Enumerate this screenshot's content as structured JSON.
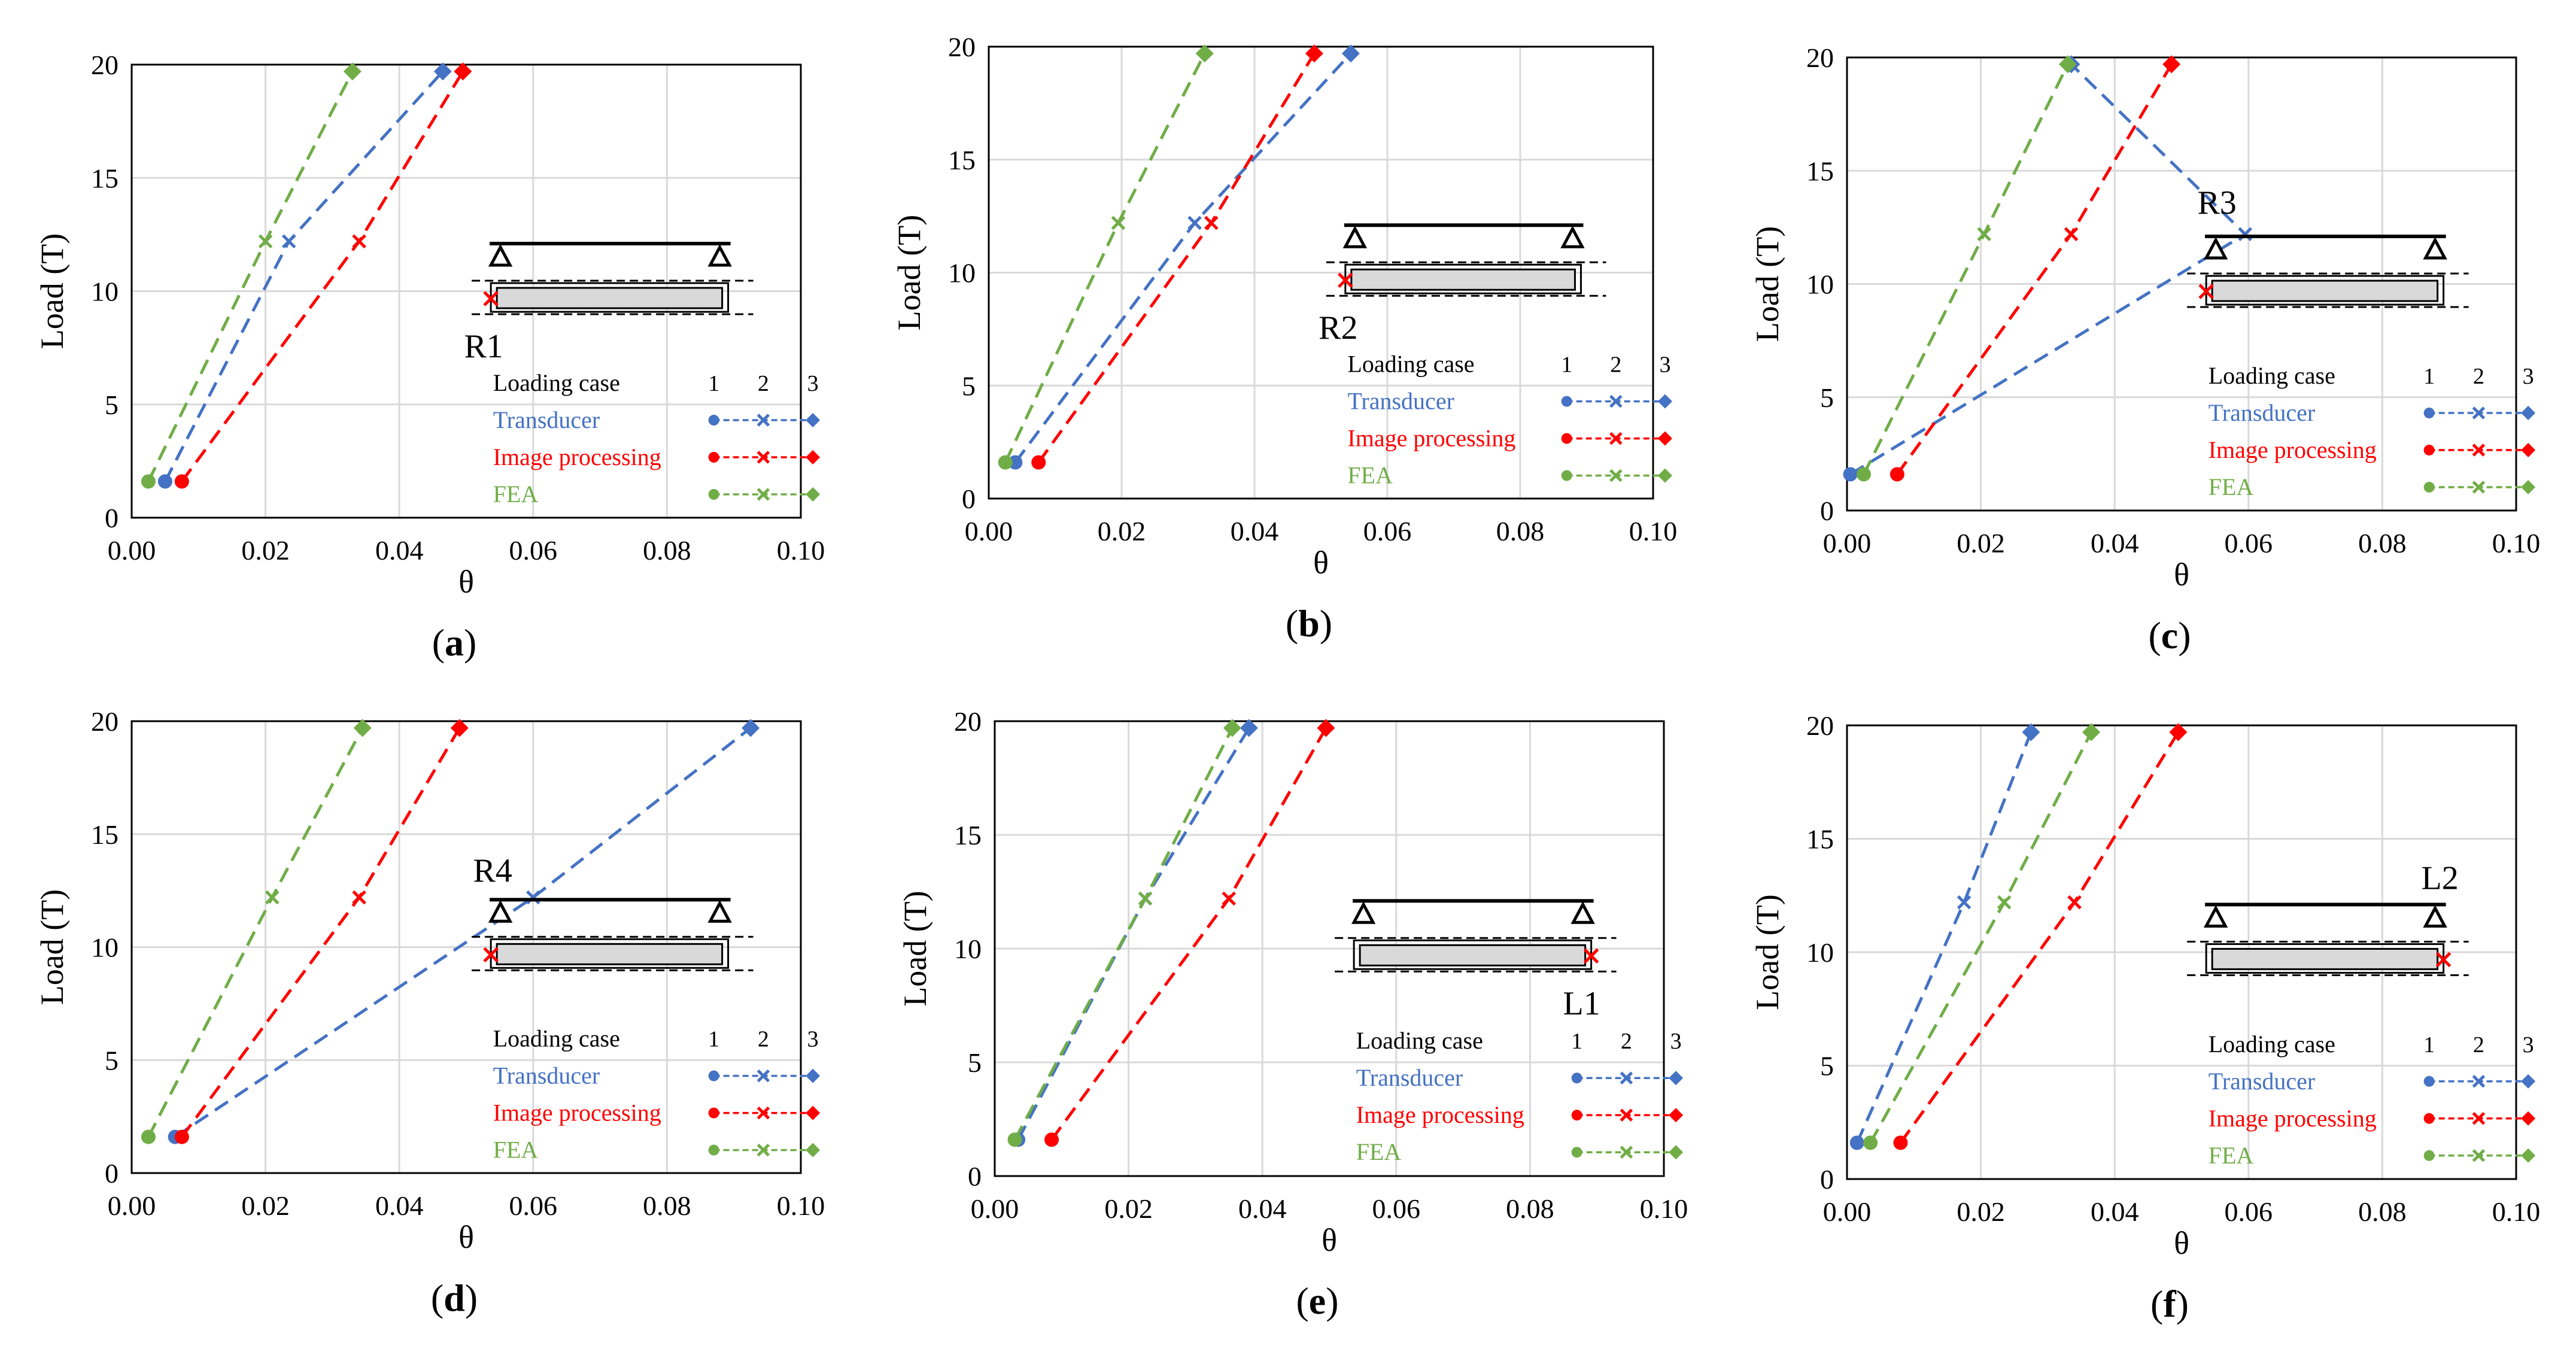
{
  "colors": {
    "transducer": "#4472C4",
    "image_processing": "#FF0000",
    "fea": "#70AD47",
    "grid": "#D9D9D9",
    "beam_fill": "#D9D9D9"
  },
  "chart_data": [
    {
      "type": "line",
      "panel_label": "(a)",
      "label_letter": "a",
      "inset_label": "R1",
      "xlabel": "θ",
      "ylabel": "Load (T)",
      "xlim": [
        0,
        0.1
      ],
      "ylim": [
        0,
        20
      ],
      "xticks": [
        "0.00",
        "0.02",
        "0.04",
        "0.06",
        "0.08",
        "0.10"
      ],
      "yticks": [
        "0",
        "5",
        "10",
        "15",
        "20"
      ],
      "legend": {
        "header": "Loading case",
        "cases": [
          "1",
          "2",
          "3"
        ],
        "entries": [
          "Transducer",
          "Image processing",
          "FEA"
        ]
      },
      "series": [
        {
          "name": "Transducer",
          "x": [
            0.005,
            0.0235,
            0.0465
          ],
          "y": [
            1.6,
            12.2,
            19.7
          ]
        },
        {
          "name": "Image processing",
          "x": [
            0.0075,
            0.034,
            0.0495
          ],
          "y": [
            1.6,
            12.2,
            19.7
          ]
        },
        {
          "name": "FEA",
          "x": [
            0.0025,
            0.02,
            0.033
          ],
          "y": [
            1.6,
            12.2,
            19.7
          ]
        }
      ]
    },
    {
      "type": "line",
      "panel_label": "(b)",
      "label_letter": "b",
      "inset_label": "R2",
      "xlabel": "θ",
      "ylabel": "Load (T)",
      "xlim": [
        0,
        0.1
      ],
      "ylim": [
        0,
        20
      ],
      "xticks": [
        "0.00",
        "0.02",
        "0.04",
        "0.06",
        "0.08",
        "0.10"
      ],
      "yticks": [
        "0",
        "5",
        "10",
        "15",
        "20"
      ],
      "legend": {
        "header": "Loading case",
        "cases": [
          "1",
          "2",
          "3"
        ],
        "entries": [
          "Transducer",
          "Image processing",
          "FEA"
        ]
      },
      "series": [
        {
          "name": "Transducer",
          "x": [
            0.004,
            0.031,
            0.0545
          ],
          "y": [
            1.6,
            12.2,
            19.7
          ]
        },
        {
          "name": "Image processing",
          "x": [
            0.0075,
            0.0335,
            0.049
          ],
          "y": [
            1.6,
            12.2,
            19.7
          ]
        },
        {
          "name": "FEA",
          "x": [
            0.0025,
            0.0195,
            0.0325
          ],
          "y": [
            1.6,
            12.2,
            19.7
          ]
        }
      ]
    },
    {
      "type": "line",
      "panel_label": "(c)",
      "label_letter": "c",
      "inset_label": "R3",
      "xlabel": "θ",
      "ylabel": "Load (T)",
      "xlim": [
        0,
        0.1
      ],
      "ylim": [
        0,
        20
      ],
      "xticks": [
        "0.00",
        "0.02",
        "0.04",
        "0.06",
        "0.08",
        "0.10"
      ],
      "yticks": [
        "0",
        "5",
        "10",
        "15",
        "20"
      ],
      "legend": {
        "header": "Loading case",
        "cases": [
          "1",
          "2",
          "3"
        ],
        "entries": [
          "Transducer",
          "Image processing",
          "FEA"
        ]
      },
      "series": [
        {
          "name": "Transducer",
          "x": [
            0.0005,
            0.0595,
            0.0335
          ],
          "y": [
            1.6,
            12.2,
            19.7
          ]
        },
        {
          "name": "Image processing",
          "x": [
            0.0075,
            0.0335,
            0.0485
          ],
          "y": [
            1.6,
            12.2,
            19.7
          ]
        },
        {
          "name": "FEA",
          "x": [
            0.0025,
            0.0205,
            0.033
          ],
          "y": [
            1.6,
            12.2,
            19.7
          ]
        }
      ]
    },
    {
      "type": "line",
      "panel_label": "(d)",
      "label_letter": "d",
      "inset_label": "R4",
      "xlabel": "θ",
      "ylabel": "Load (T)",
      "xlim": [
        0,
        0.1
      ],
      "ylim": [
        0,
        20
      ],
      "xticks": [
        "0.00",
        "0.02",
        "0.04",
        "0.06",
        "0.08",
        "0.10"
      ],
      "yticks": [
        "0",
        "5",
        "10",
        "15",
        "20"
      ],
      "legend": {
        "header": "Loading case",
        "cases": [
          "1",
          "2",
          "3"
        ],
        "entries": [
          "Transducer",
          "Image processing",
          "FEA"
        ]
      },
      "series": [
        {
          "name": "Transducer",
          "x": [
            0.0065,
            0.06,
            0.0925
          ],
          "y": [
            1.6,
            12.2,
            19.7
          ]
        },
        {
          "name": "Image processing",
          "x": [
            0.0075,
            0.034,
            0.049
          ],
          "y": [
            1.6,
            12.2,
            19.7
          ]
        },
        {
          "name": "FEA",
          "x": [
            0.0025,
            0.021,
            0.0345
          ],
          "y": [
            1.6,
            12.2,
            19.7
          ]
        }
      ]
    },
    {
      "type": "line",
      "panel_label": "(e)",
      "label_letter": "e",
      "inset_label": "L1",
      "xlabel": "θ",
      "ylabel": "Load (T)",
      "xlim": [
        0,
        0.1
      ],
      "ylim": [
        0,
        20
      ],
      "xticks": [
        "0.00",
        "0.02",
        "0.04",
        "0.06",
        "0.08",
        "0.10"
      ],
      "yticks": [
        "0",
        "5",
        "10",
        "15",
        "20"
      ],
      "legend": {
        "header": "Loading case",
        "cases": [
          "1",
          "2",
          "3"
        ],
        "entries": [
          "Transducer",
          "Image processing",
          "FEA"
        ]
      },
      "series": [
        {
          "name": "Transducer",
          "x": [
            0.0035,
            0.0225,
            0.038
          ],
          "y": [
            1.6,
            12.2,
            19.7
          ]
        },
        {
          "name": "Image processing",
          "x": [
            0.0085,
            0.035,
            0.0495
          ],
          "y": [
            1.6,
            12.2,
            19.7
          ]
        },
        {
          "name": "FEA",
          "x": [
            0.003,
            0.0225,
            0.0355
          ],
          "y": [
            1.6,
            12.2,
            19.7
          ]
        }
      ]
    },
    {
      "type": "line",
      "panel_label": "(f)",
      "label_letter": "f",
      "inset_label": "L2",
      "xlabel": "θ",
      "ylabel": "Load (T)",
      "xlim": [
        0,
        0.1
      ],
      "ylim": [
        0,
        20
      ],
      "xticks": [
        "0.00",
        "0.02",
        "0.04",
        "0.06",
        "0.08",
        "0.10"
      ],
      "yticks": [
        "0",
        "5",
        "10",
        "15",
        "20"
      ],
      "legend": {
        "header": "Loading case",
        "cases": [
          "1",
          "2",
          "3"
        ],
        "entries": [
          "Transducer",
          "Image processing",
          "FEA"
        ]
      },
      "series": [
        {
          "name": "Transducer",
          "x": [
            0.0015,
            0.0175,
            0.0275
          ],
          "y": [
            1.6,
            12.2,
            19.7
          ]
        },
        {
          "name": "Image processing",
          "x": [
            0.008,
            0.034,
            0.0495
          ],
          "y": [
            1.6,
            12.2,
            19.7
          ]
        },
        {
          "name": "FEA",
          "x": [
            0.0035,
            0.0235,
            0.0365
          ],
          "y": [
            1.6,
            12.2,
            19.7
          ]
        }
      ]
    }
  ]
}
